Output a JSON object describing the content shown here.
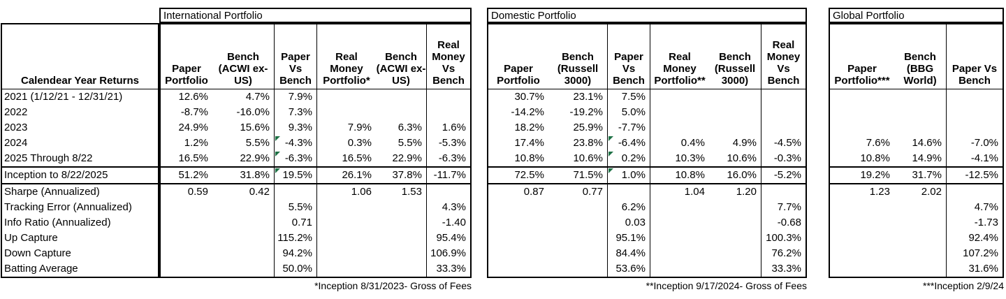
{
  "colors": {
    "background": "#ffffff",
    "border": "#000000",
    "text": "#000000",
    "flag_green": "#1e7145"
  },
  "left_column": {
    "header": "Calendear Year Returns",
    "row_labels": [
      "2021 (1/12/21 - 12/31/21)",
      "2022",
      "2023",
      "2024",
      "2025 Through 8/22",
      "Inception to 8/22/2025",
      "Sharpe (Annualized)",
      "Tracking Error (Annualized)",
      "Info Ratio (Annualized)",
      "Up Capture",
      "Down Capture",
      "Batting Average"
    ]
  },
  "sections": [
    {
      "title": "International Portfolio",
      "footnote": "*Inception 8/31/2023- Gross of Fees",
      "columns": [
        {
          "label": "Paper\nPortfolio",
          "width": 74
        },
        {
          "label": "Bench\n(ACWI ex-\nUS)",
          "width": 88
        },
        {
          "label": "Paper\nVs\nBench",
          "width": 62,
          "sep_left": true,
          "sep_right": true
        },
        {
          "label": "Real\nMoney\nPortfolio*",
          "width": 84
        },
        {
          "label": "Bench\n(ACWI ex-\nUS)",
          "width": 72
        },
        {
          "label": "Real\nMoney\nVs\nBench",
          "width": 63,
          "sep_left": true
        }
      ],
      "rows": [
        {
          "cells": [
            "12.6%",
            "4.7%",
            "7.9%",
            "",
            "",
            ""
          ]
        },
        {
          "cells": [
            "-8.7%",
            "-16.0%",
            "7.3%",
            "",
            "",
            ""
          ]
        },
        {
          "cells": [
            "24.9%",
            "15.6%",
            "9.3%",
            "7.9%",
            "6.3%",
            "1.6%"
          ]
        },
        {
          "cells": [
            "1.2%",
            "5.5%",
            "-4.3%",
            "0.3%",
            "5.5%",
            "-5.3%"
          ],
          "flag_cols": [
            2
          ]
        },
        {
          "cells": [
            "16.5%",
            "22.9%",
            "-6.3%",
            "16.5%",
            "22.9%",
            "-6.3%"
          ],
          "flag_cols": [
            2
          ]
        },
        {
          "cells": [
            "51.2%",
            "31.8%",
            "19.5%",
            "26.1%",
            "37.8%",
            "-11.7%"
          ],
          "flag_cols": [
            2
          ],
          "emphasis": true
        },
        {
          "cells": [
            "0.59",
            "0.42",
            "",
            "1.06",
            "1.53",
            ""
          ]
        },
        {
          "cells": [
            "",
            "",
            "5.5%",
            "",
            "",
            "4.3%"
          ]
        },
        {
          "cells": [
            "",
            "",
            "0.71",
            "",
            "",
            "-1.40"
          ]
        },
        {
          "cells": [
            "",
            "",
            "115.2%",
            "",
            "",
            "95.4%"
          ]
        },
        {
          "cells": [
            "",
            "",
            "94.2%",
            "",
            "",
            "106.9%"
          ]
        },
        {
          "cells": [
            "",
            "",
            "50.0%",
            "",
            "",
            "33.3%"
          ]
        }
      ]
    },
    {
      "title": "Domestic Portfolio",
      "footnote": "**Inception 9/17/2024- Gross of Fees",
      "columns": [
        {
          "label": "Paper\nPortfolio",
          "width": 86
        },
        {
          "label": "Bench\n(Russell\n3000)",
          "width": 84
        },
        {
          "label": "Paper\nVs\nBench",
          "width": 62,
          "sep_left": true,
          "sep_right": true
        },
        {
          "label": "Real\nMoney\nPortfolio**",
          "width": 84
        },
        {
          "label": "Bench\n(Russell\n3000)",
          "width": 74
        },
        {
          "label": "Real\nMoney\nVs\nBench",
          "width": 64,
          "sep_left": true
        }
      ],
      "rows": [
        {
          "cells": [
            "30.7%",
            "23.1%",
            "7.5%",
            "",
            "",
            ""
          ]
        },
        {
          "cells": [
            "-14.2%",
            "-19.2%",
            "5.0%",
            "",
            "",
            ""
          ]
        },
        {
          "cells": [
            "18.2%",
            "25.9%",
            "-7.7%",
            "",
            "",
            ""
          ]
        },
        {
          "cells": [
            "17.4%",
            "23.8%",
            "-6.4%",
            "0.4%",
            "4.9%",
            "-4.5%"
          ],
          "flag_cols": [
            2
          ]
        },
        {
          "cells": [
            "10.8%",
            "10.6%",
            "0.2%",
            "10.3%",
            "10.6%",
            "-0.3%"
          ],
          "flag_cols": [
            2
          ]
        },
        {
          "cells": [
            "72.5%",
            "71.5%",
            "1.0%",
            "10.8%",
            "16.0%",
            "-5.2%"
          ],
          "flag_cols": [
            2
          ],
          "emphasis": true
        },
        {
          "cells": [
            "0.87",
            "0.77",
            "",
            "1.04",
            "1.20",
            ""
          ]
        },
        {
          "cells": [
            "",
            "",
            "6.2%",
            "",
            "",
            "7.7%"
          ]
        },
        {
          "cells": [
            "",
            "",
            "0.03",
            "",
            "",
            "-0.68"
          ]
        },
        {
          "cells": [
            "",
            "",
            "95.1%",
            "",
            "",
            "100.3%"
          ]
        },
        {
          "cells": [
            "",
            "",
            "84.4%",
            "",
            "",
            "76.2%"
          ]
        },
        {
          "cells": [
            "",
            "",
            "53.6%",
            "",
            "",
            "33.3%"
          ]
        }
      ]
    },
    {
      "title": "Global Portfolio",
      "footnote": "***Inception 2/9/24",
      "columns": [
        {
          "label": "Paper\nPortfolio***",
          "width": 92
        },
        {
          "label": "Bench\n(BBG\nWorld)",
          "width": 74
        },
        {
          "label": "Paper Vs\nBench",
          "width": 81,
          "sep_left": true
        }
      ],
      "rows": [
        {
          "cells": [
            "",
            "",
            ""
          ]
        },
        {
          "cells": [
            "",
            "",
            ""
          ]
        },
        {
          "cells": [
            "",
            "",
            ""
          ]
        },
        {
          "cells": [
            "7.6%",
            "14.6%",
            "-7.0%"
          ]
        },
        {
          "cells": [
            "10.8%",
            "14.9%",
            "-4.1%"
          ]
        },
        {
          "cells": [
            "19.2%",
            "31.7%",
            "-12.5%"
          ],
          "emphasis": true
        },
        {
          "cells": [
            "1.23",
            "2.02",
            ""
          ]
        },
        {
          "cells": [
            "",
            "",
            "4.7%"
          ]
        },
        {
          "cells": [
            "",
            "",
            "-1.73"
          ]
        },
        {
          "cells": [
            "",
            "",
            "92.4%"
          ]
        },
        {
          "cells": [
            "",
            "",
            "107.2%"
          ]
        },
        {
          "cells": [
            "",
            "",
            "31.6%"
          ]
        }
      ]
    }
  ]
}
